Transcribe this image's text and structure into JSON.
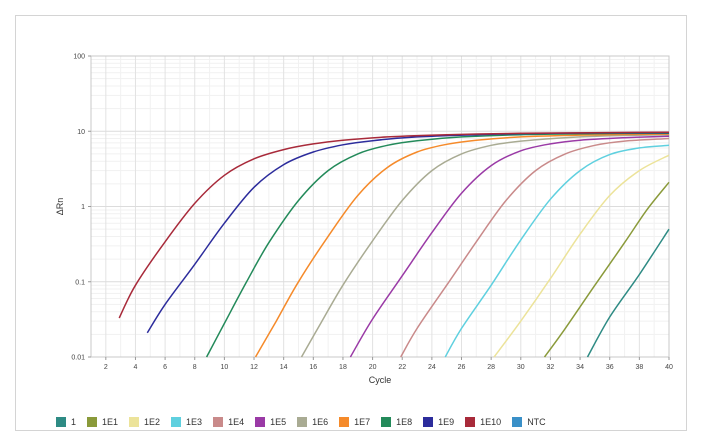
{
  "chart_data": {
    "type": "line",
    "title": "",
    "xlabel": "Cycle",
    "ylabel": "ΔRn",
    "xlim": [
      1,
      40
    ],
    "ylim": [
      0.01,
      100
    ],
    "yscale": "log",
    "x_ticks": [
      2,
      4,
      6,
      8,
      10,
      12,
      14,
      16,
      18,
      20,
      22,
      24,
      26,
      28,
      30,
      32,
      34,
      36,
      38,
      40
    ],
    "y_ticks": [
      0.01,
      0.1,
      1,
      10,
      100
    ],
    "y_tick_labels": [
      "0.01",
      "0.1",
      "1",
      "10",
      "100"
    ],
    "grid": true,
    "legend_position": "bottom",
    "plateau": 9.5,
    "series": [
      {
        "name": "1",
        "color": "#2e8b84",
        "points": [
          [
            34.5,
            0.01
          ],
          [
            36,
            0.034
          ],
          [
            38,
            0.125
          ],
          [
            40,
            0.5
          ]
        ]
      },
      {
        "name": "1E1",
        "color": "#8a9a3a",
        "points": [
          [
            31.6,
            0.01
          ],
          [
            33,
            0.024
          ],
          [
            35,
            0.09
          ],
          [
            37,
            0.33
          ],
          [
            38.5,
            0.9
          ],
          [
            40,
            2.1
          ]
        ]
      },
      {
        "name": "1E2",
        "color": "#ece39a",
        "points": [
          [
            28.2,
            0.01
          ],
          [
            30,
            0.03
          ],
          [
            32,
            0.11
          ],
          [
            34,
            0.43
          ],
          [
            36,
            1.4
          ],
          [
            38,
            3.0
          ],
          [
            40,
            4.8
          ]
        ]
      },
      {
        "name": "1E3",
        "color": "#5fd0df",
        "points": [
          [
            24.9,
            0.01
          ],
          [
            26,
            0.024
          ],
          [
            28,
            0.09
          ],
          [
            30,
            0.36
          ],
          [
            32,
            1.25
          ],
          [
            34,
            3.0
          ],
          [
            36,
            4.9
          ],
          [
            38,
            6.0
          ],
          [
            40,
            6.5
          ]
        ]
      },
      {
        "name": "1E4",
        "color": "#c98a8a",
        "points": [
          [
            21.9,
            0.01
          ],
          [
            23,
            0.024
          ],
          [
            25,
            0.09
          ],
          [
            27,
            0.34
          ],
          [
            29,
            1.2
          ],
          [
            31,
            3.0
          ],
          [
            33,
            5.0
          ],
          [
            35,
            6.5
          ],
          [
            37,
            7.4
          ],
          [
            40,
            8.0
          ]
        ]
      },
      {
        "name": "1E5",
        "color": "#9a3aa6",
        "points": [
          [
            18.5,
            0.01
          ],
          [
            20,
            0.032
          ],
          [
            22,
            0.12
          ],
          [
            24,
            0.45
          ],
          [
            26,
            1.5
          ],
          [
            28,
            3.5
          ],
          [
            30,
            5.5
          ],
          [
            32,
            6.8
          ],
          [
            34,
            7.6
          ],
          [
            37,
            8.2
          ],
          [
            40,
            8.6
          ]
        ]
      },
      {
        "name": "1E6",
        "color": "#a9ab93",
        "points": [
          [
            15.2,
            0.01
          ],
          [
            16.5,
            0.028
          ],
          [
            18,
            0.09
          ],
          [
            20,
            0.35
          ],
          [
            22,
            1.2
          ],
          [
            24,
            3.0
          ],
          [
            26,
            5.0
          ],
          [
            28,
            6.5
          ],
          [
            30,
            7.4
          ],
          [
            33,
            8.2
          ],
          [
            36,
            8.7
          ],
          [
            40,
            9.0
          ]
        ]
      },
      {
        "name": "1E7",
        "color": "#f58a2a",
        "points": [
          [
            12.1,
            0.01
          ],
          [
            13.5,
            0.03
          ],
          [
            15,
            0.1
          ],
          [
            17,
            0.4
          ],
          [
            19,
            1.4
          ],
          [
            21,
            3.3
          ],
          [
            23,
            5.3
          ],
          [
            25,
            6.7
          ],
          [
            27,
            7.6
          ],
          [
            30,
            8.4
          ],
          [
            34,
            8.9
          ],
          [
            40,
            9.2
          ]
        ]
      },
      {
        "name": "1E8",
        "color": "#238a5a",
        "points": [
          [
            8.8,
            0.01
          ],
          [
            10,
            0.028
          ],
          [
            11.5,
            0.1
          ],
          [
            13,
            0.33
          ],
          [
            15,
            1.2
          ],
          [
            17,
            3.0
          ],
          [
            19,
            5.0
          ],
          [
            21,
            6.5
          ],
          [
            23,
            7.5
          ],
          [
            26,
            8.4
          ],
          [
            30,
            9.0
          ],
          [
            35,
            9.3
          ],
          [
            40,
            9.4
          ]
        ]
      },
      {
        "name": "1E9",
        "color": "#2c2c9c",
        "points": [
          [
            4.8,
            0.021
          ],
          [
            6,
            0.05
          ],
          [
            8,
            0.17
          ],
          [
            10,
            0.6
          ],
          [
            12,
            1.8
          ],
          [
            14,
            3.6
          ],
          [
            16,
            5.3
          ],
          [
            18,
            6.6
          ],
          [
            20,
            7.5
          ],
          [
            23,
            8.4
          ],
          [
            27,
            9.0
          ],
          [
            32,
            9.4
          ],
          [
            40,
            9.6
          ]
        ]
      },
      {
        "name": "1E10",
        "color": "#a82a3a",
        "points": [
          [
            2.9,
            0.033
          ],
          [
            4,
            0.09
          ],
          [
            6,
            0.34
          ],
          [
            8,
            1.1
          ],
          [
            10,
            2.6
          ],
          [
            12,
            4.3
          ],
          [
            14,
            5.7
          ],
          [
            16,
            6.8
          ],
          [
            18,
            7.6
          ],
          [
            21,
            8.4
          ],
          [
            25,
            9.0
          ],
          [
            30,
            9.4
          ],
          [
            40,
            9.7
          ]
        ]
      },
      {
        "name": "NTC",
        "color": "#3a90c8",
        "points": []
      }
    ]
  }
}
